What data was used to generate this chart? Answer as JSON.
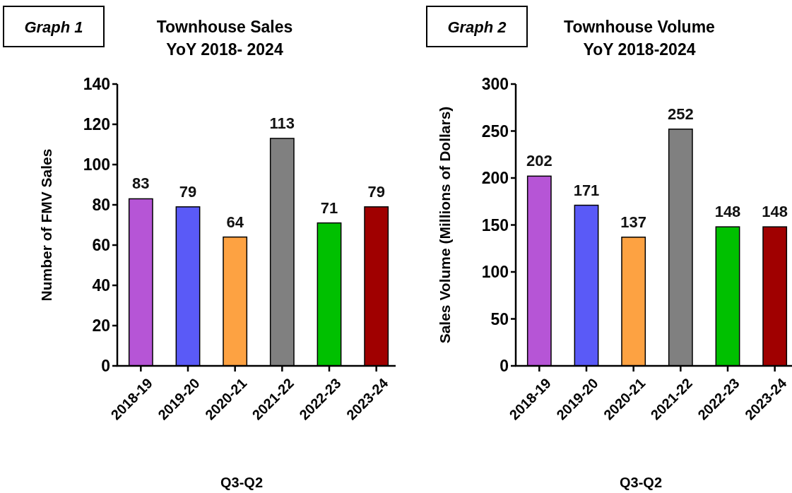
{
  "chart_data": [
    {
      "type": "bar",
      "title": "Townhouse Sales",
      "subtitle": "YoY 2018- 2024",
      "xlabel": "Q3-Q2",
      "ylabel": "Number of FMV Sales",
      "annotations": [
        "Graph 1"
      ],
      "categories": [
        "2018-19",
        "2019-20",
        "2020-21",
        "2021-22",
        "2022-23",
        "2023-24"
      ],
      "values": [
        83,
        79,
        64,
        113,
        71,
        79
      ],
      "colors": [
        "#b655d6",
        "#5a5af7",
        "#fda242",
        "#808080",
        "#00c000",
        "#a00000"
      ],
      "ylim": [
        0,
        140
      ],
      "yticks": [
        0,
        20,
        40,
        60,
        80,
        100,
        120,
        140
      ],
      "data_labels": true
    },
    {
      "type": "bar",
      "title": "Townhouse Volume",
      "subtitle": "YoY 2018-2024",
      "xlabel": "Q3-Q2",
      "ylabel": "Sales Volume (Millions of Dollars)",
      "annotations": [
        "Graph 2"
      ],
      "categories": [
        "2018-19",
        "2019-20",
        "2020-21",
        "2021-22",
        "2022-23",
        "2023-24"
      ],
      "values": [
        202,
        171,
        137,
        252,
        148,
        148
      ],
      "colors": [
        "#b655d6",
        "#5a5af7",
        "#fda242",
        "#808080",
        "#00c000",
        "#a00000"
      ],
      "ylim": [
        0,
        300
      ],
      "yticks": [
        0,
        50,
        100,
        150,
        200,
        250,
        300
      ],
      "data_labels": true
    }
  ]
}
